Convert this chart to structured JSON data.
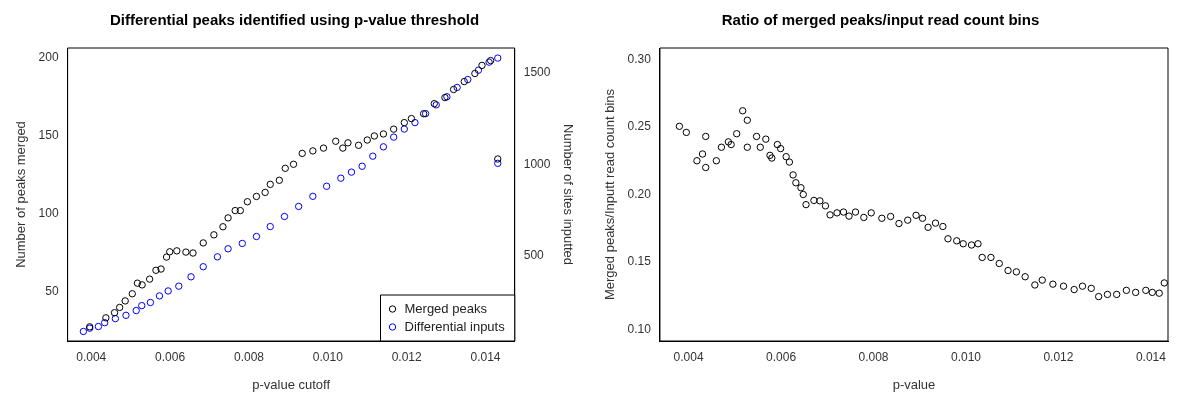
{
  "chart_data": [
    {
      "type": "scatter",
      "title": "Differential peaks identified using p-value threshold",
      "xlabel": "p-value cutoff",
      "ylabel": "Number of peaks merged",
      "y2label": "Number of sites inputted",
      "xlim": [
        0.0034,
        0.01474
      ],
      "xticks": [
        0.004,
        0.006,
        0.008,
        {
          "value": 0.01,
          "label": "0.010"
        },
        0.012,
        0.014
      ],
      "ylim": [
        18,
        206.5
      ],
      "yticks": [
        50,
        100,
        150,
        200
      ],
      "y2lim": [
        36,
        1634
      ],
      "y2ticks": [
        500,
        1000,
        1500
      ],
      "marker": "circle",
      "grid": false,
      "legend": "bottom right",
      "series": [
        {
          "name": "Merged peaks",
          "color": "#000000",
          "x": [
            0.00396,
            0.00437,
            0.00459,
            0.00472,
            0.00486,
            0.00504,
            0.00517,
            0.00529,
            0.00548,
            0.00564,
            0.00577,
            0.00591,
            0.00599,
            0.00617,
            0.0064,
            0.00658,
            0.00684,
            0.00711,
            0.00734,
            0.00747,
            0.00765,
            0.00778,
            0.00796,
            0.00819,
            0.00841,
            0.00854,
            0.00877,
            0.00892,
            0.00913,
            0.00935,
            0.00962,
            0.00989,
            0.0102,
            0.01038,
            0.01051,
            0.01078,
            0.011,
            0.01118,
            0.01141,
            0.01167,
            0.01194,
            0.01212,
            0.01243,
            0.0127,
            0.01297,
            0.01319,
            0.01346,
            0.01373,
            0.01391,
            0.01413,
            0.01431
          ],
          "values": [
            27.1,
            32.9,
            36.2,
            39.6,
            43.8,
            48.4,
            55.2,
            54.1,
            57.8,
            63.5,
            64.3,
            72.0,
            75.4,
            76.0,
            75.2,
            74.6,
            81.1,
            86.3,
            91.5,
            97.2,
            101.9,
            101.9,
            107.6,
            111.0,
            113.6,
            118.8,
            121.4,
            129.1,
            131.7,
            138.7,
            140.3,
            142.1,
            146.5,
            142.1,
            145.5,
            143.9,
            147.3,
            149.9,
            151.2,
            154.3,
            158.5,
            161.1,
            164.2,
            170.7,
            174.6,
            179.8,
            184.9,
            190.1,
            195.3,
            198.4,
            135.1
          ]
        },
        {
          "name": "Differential inputs",
          "color": "#0000ff",
          "axis": "y2",
          "x": [
            0.0038,
            0.00396,
            0.00418,
            0.00434,
            0.00461,
            0.00488,
            0.00514,
            0.00528,
            0.0055,
            0.00573,
            0.00595,
            0.00622,
            0.00653,
            0.00684,
            0.0072,
            0.00747,
            0.00783,
            0.00819,
            0.00854,
            0.0089,
            0.00926,
            0.00962,
            0.00997,
            0.01033,
            0.0106,
            0.01087,
            0.01114,
            0.01141,
            0.01167,
            0.01194,
            0.01221,
            0.01248,
            0.01275,
            0.01302,
            0.01328,
            0.01355,
            0.01382,
            0.01409,
            0.01431,
            0.01431
          ],
          "values": [
            88,
            106,
            115,
            136,
            158,
            176,
            202,
            229,
            246,
            282,
            309,
            335,
            386,
            441,
            495,
            539,
            568,
            606,
            660,
            715,
            770,
            825,
            880,
            924,
            957,
            989,
            1044,
            1095,
            1148,
            1192,
            1227,
            1276,
            1324,
            1368,
            1419,
            1462,
            1513,
            1557,
            1579,
            1005
          ]
        }
      ]
    },
    {
      "type": "scatter",
      "title": "Ratio of merged peaks/input read count bins",
      "xlabel": "p-value",
      "ylabel": "Merged peaks/Inputt read count bins",
      "xlim": [
        0.00338,
        0.01437
      ],
      "xticks": [
        0.004,
        0.006,
        0.008,
        {
          "value": 0.01,
          "label": "0.010"
        },
        0.012,
        0.014
      ],
      "ylim": [
        0.0915,
        0.3085
      ],
      "yticks": [
        {
          "value": 0.1,
          "label": "0.10"
        },
        0.15,
        {
          "value": 0.2,
          "label": "0.20"
        },
        0.25,
        {
          "value": 0.3,
          "label": "0.30"
        }
      ],
      "marker": "circle",
      "grid": false,
      "series": [
        {
          "color": "#000000",
          "x": [
            0.0038,
            0.00395,
            0.00418,
            0.0043,
            0.00437,
            0.00437,
            0.0046,
            0.00471,
            0.00486,
            0.00492,
            0.00504,
            0.00517,
            0.00527,
            0.00527,
            0.00547,
            0.00555,
            0.00567,
            0.00576,
            0.0058,
            0.00592,
            0.00599,
            0.00611,
            0.00618,
            0.00626,
            0.00632,
            0.00643,
            0.00648,
            0.00654,
            0.00671,
            0.00684,
            0.00696,
            0.00706,
            0.00721,
            0.00735,
            0.00747,
            0.00761,
            0.00779,
            0.00795,
            0.00818,
            0.00837,
            0.00855,
            0.00874,
            0.00892,
            0.00906,
            0.00918,
            0.00934,
            0.0095,
            0.00961,
            0.0098,
            0.00994,
            0.01012,
            0.01026,
            0.01035,
            0.01054,
            0.01072,
            0.01091,
            0.01109,
            0.01128,
            0.01149,
            0.01165,
            0.01188,
            0.01211,
            0.01234,
            0.01252,
            0.01271,
            0.01287,
            0.01306,
            0.01326,
            0.01347,
            0.01367,
            0.01389,
            0.01403,
            0.01418,
            0.01429
          ],
          "values": [
            0.2505,
            0.246,
            0.225,
            0.23,
            0.243,
            0.22,
            0.225,
            0.235,
            0.239,
            0.237,
            0.245,
            0.262,
            0.255,
            0.235,
            0.243,
            0.235,
            0.241,
            0.229,
            0.227,
            0.237,
            0.234,
            0.228,
            0.224,
            0.2145,
            0.2087,
            0.205,
            0.2,
            0.1925,
            0.1956,
            0.1953,
            0.1916,
            0.1849,
            0.1864,
            0.187,
            0.184,
            0.187,
            0.183,
            0.1864,
            0.1824,
            0.1837,
            0.1785,
            0.181,
            0.1846,
            0.1824,
            0.1757,
            0.1788,
            0.1763,
            0.1672,
            0.1657,
            0.1635,
            0.1626,
            0.1635,
            0.1534,
            0.1534,
            0.1489,
            0.1437,
            0.1427,
            0.1391,
            0.133,
            0.1366,
            0.1336,
            0.1321,
            0.1296,
            0.1321,
            0.1305,
            0.1244,
            0.126,
            0.126,
            0.129,
            0.1275,
            0.129,
            0.1275,
            0.1269,
            0.1345
          ]
        }
      ]
    }
  ]
}
